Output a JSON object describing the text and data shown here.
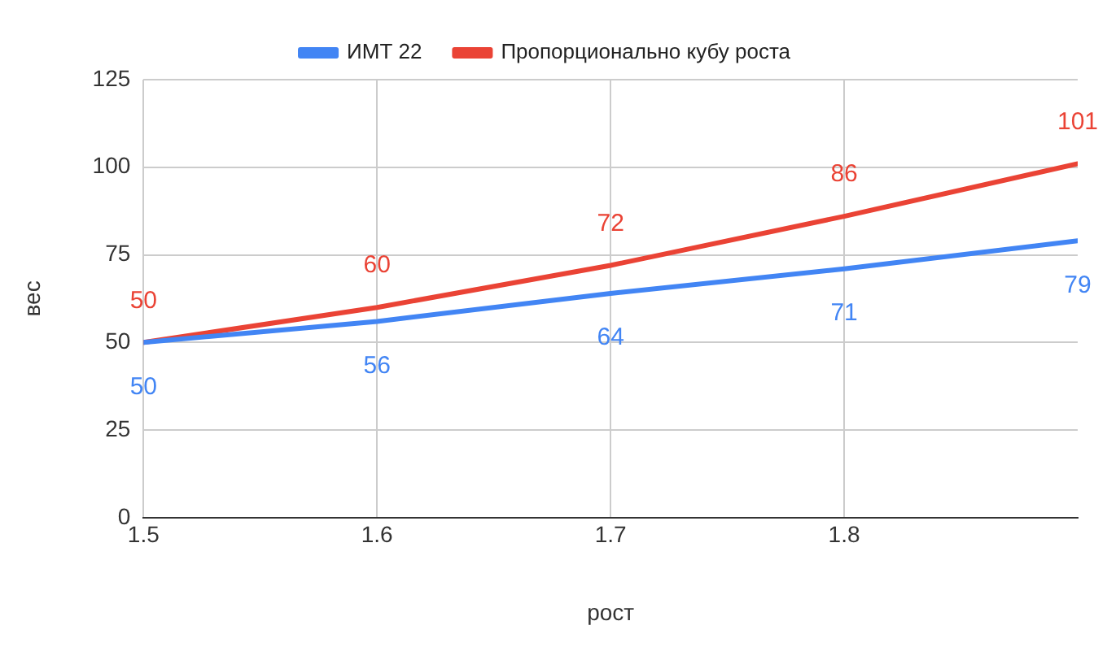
{
  "chart_data": {
    "type": "line",
    "xlabel": "рост",
    "ylabel": "вес",
    "x": [
      1.5,
      1.6,
      1.7,
      1.8,
      1.9
    ],
    "series": [
      {
        "name": "ИМТ 22",
        "color": "#4285f4",
        "values": [
          50,
          56,
          64,
          71,
          79
        ]
      },
      {
        "name": "Пропорционально кубу роста",
        "color": "#ea4335",
        "values": [
          50,
          60,
          72,
          86,
          101
        ]
      }
    ],
    "xlim": [
      1.5,
      1.9
    ],
    "xticks": [
      1.5,
      1.6,
      1.7,
      1.8
    ],
    "ylim": [
      0,
      125
    ],
    "yticks": [
      0,
      25,
      50,
      75,
      100,
      125
    ],
    "grid": true,
    "legend": "top",
    "marker": "none",
    "line_style": "solid",
    "data_labels": true
  }
}
